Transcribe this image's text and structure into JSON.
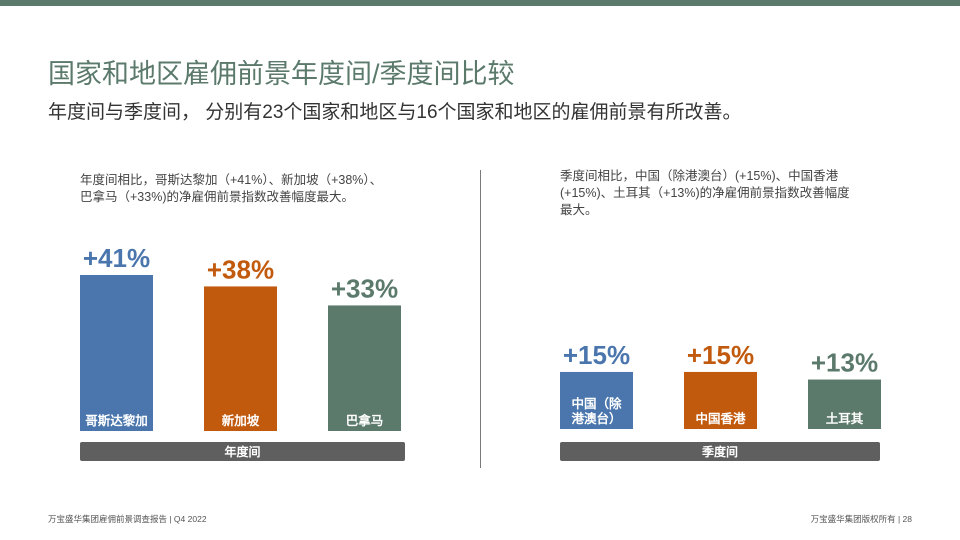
{
  "slide": {
    "title": "国家和地区雇佣前景年度间/季度间比较",
    "subtitle": "年度间与季度间， 分别有23个国家和地区与16个国家和地区的雇佣前景有所改善。",
    "colors": {
      "accent": "#5b7a6b",
      "blue": "#4a76ad",
      "orange": "#c25a0e",
      "green": "#5b7a6b",
      "axis_label_bg": "#5f5f5f"
    }
  },
  "left_panel": {
    "description_line1": "年度间相比，哥斯达黎加（+41%）、新加坡（+38%）、",
    "description_line2": "巴拿马（+33%)的净雇佣前景指数改善幅度最大。"
  },
  "right_panel": {
    "description_line1": "季度间相比，中国（除港澳台）(+15%)、中国香港",
    "description_line2": "(+15%)、土耳其（+13%)的净雇佣前景指数改善幅度",
    "description_line3": "最大。"
  },
  "footer": {
    "left": "万宝盛华集团雇佣前景调查报告 |  Q4 2022",
    "right": "万宝盛华集团版权所有 |  28"
  },
  "chart_data": [
    {
      "type": "bar",
      "xlabel": "年度间",
      "categories": [
        "哥斯达黎加",
        "新加坡",
        "巴拿马"
      ],
      "values": [
        41,
        38,
        33
      ],
      "value_labels": [
        "+41%",
        "+38%",
        "+33%"
      ],
      "colors": [
        "#4a76ad",
        "#c25a0e",
        "#5b7a6b"
      ],
      "ylim": [
        0,
        41
      ]
    },
    {
      "type": "bar",
      "xlabel": "季度间",
      "categories": [
        "中国（除港澳台）",
        "中国香港",
        "土耳其"
      ],
      "category_lines": [
        [
          "中国（除",
          "港澳台）"
        ],
        [
          "中国香港"
        ],
        [
          "土耳其"
        ]
      ],
      "values": [
        15,
        15,
        13
      ],
      "value_labels": [
        "+15%",
        "+15%",
        "+13%"
      ],
      "colors": [
        "#4a76ad",
        "#c25a0e",
        "#5b7a6b"
      ],
      "ylim": [
        0,
        41
      ]
    }
  ]
}
